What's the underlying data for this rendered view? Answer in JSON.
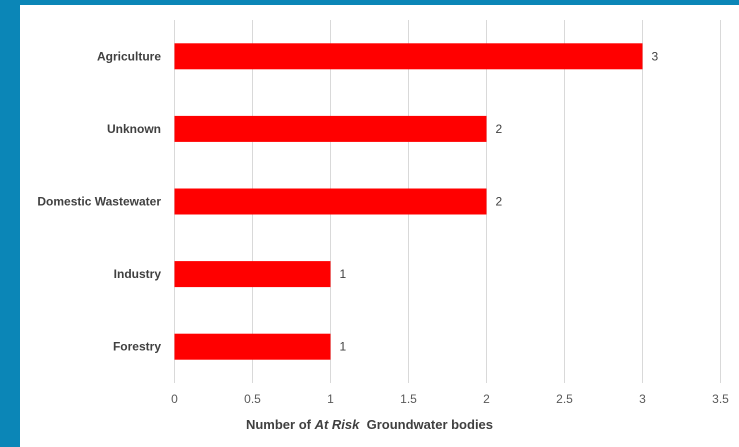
{
  "chart_data": {
    "type": "bar",
    "orientation": "horizontal",
    "categories": [
      "Agriculture",
      "Unknown",
      "Domestic Wastewater",
      "Industry",
      "Forestry"
    ],
    "values": [
      3,
      2,
      2,
      1,
      1
    ],
    "data_labels": [
      "3",
      "2",
      "2",
      "1",
      "1"
    ],
    "xlim": [
      0,
      3.5
    ],
    "x_ticks": [
      0,
      0.5,
      1,
      1.5,
      2,
      2.5,
      3,
      3.5
    ],
    "x_tick_labels": [
      "0",
      "0.5",
      "1",
      "1.5",
      "2",
      "2.5",
      "3",
      "3.5"
    ],
    "xlabel_parts": [
      "Number of ",
      "At Risk",
      "  Groundwater bodies"
    ],
    "grid": "vertical",
    "bar_color": "#ff0000",
    "grid_color": "#d9d9d9"
  },
  "colors": {
    "frame": "#0b86b7"
  }
}
